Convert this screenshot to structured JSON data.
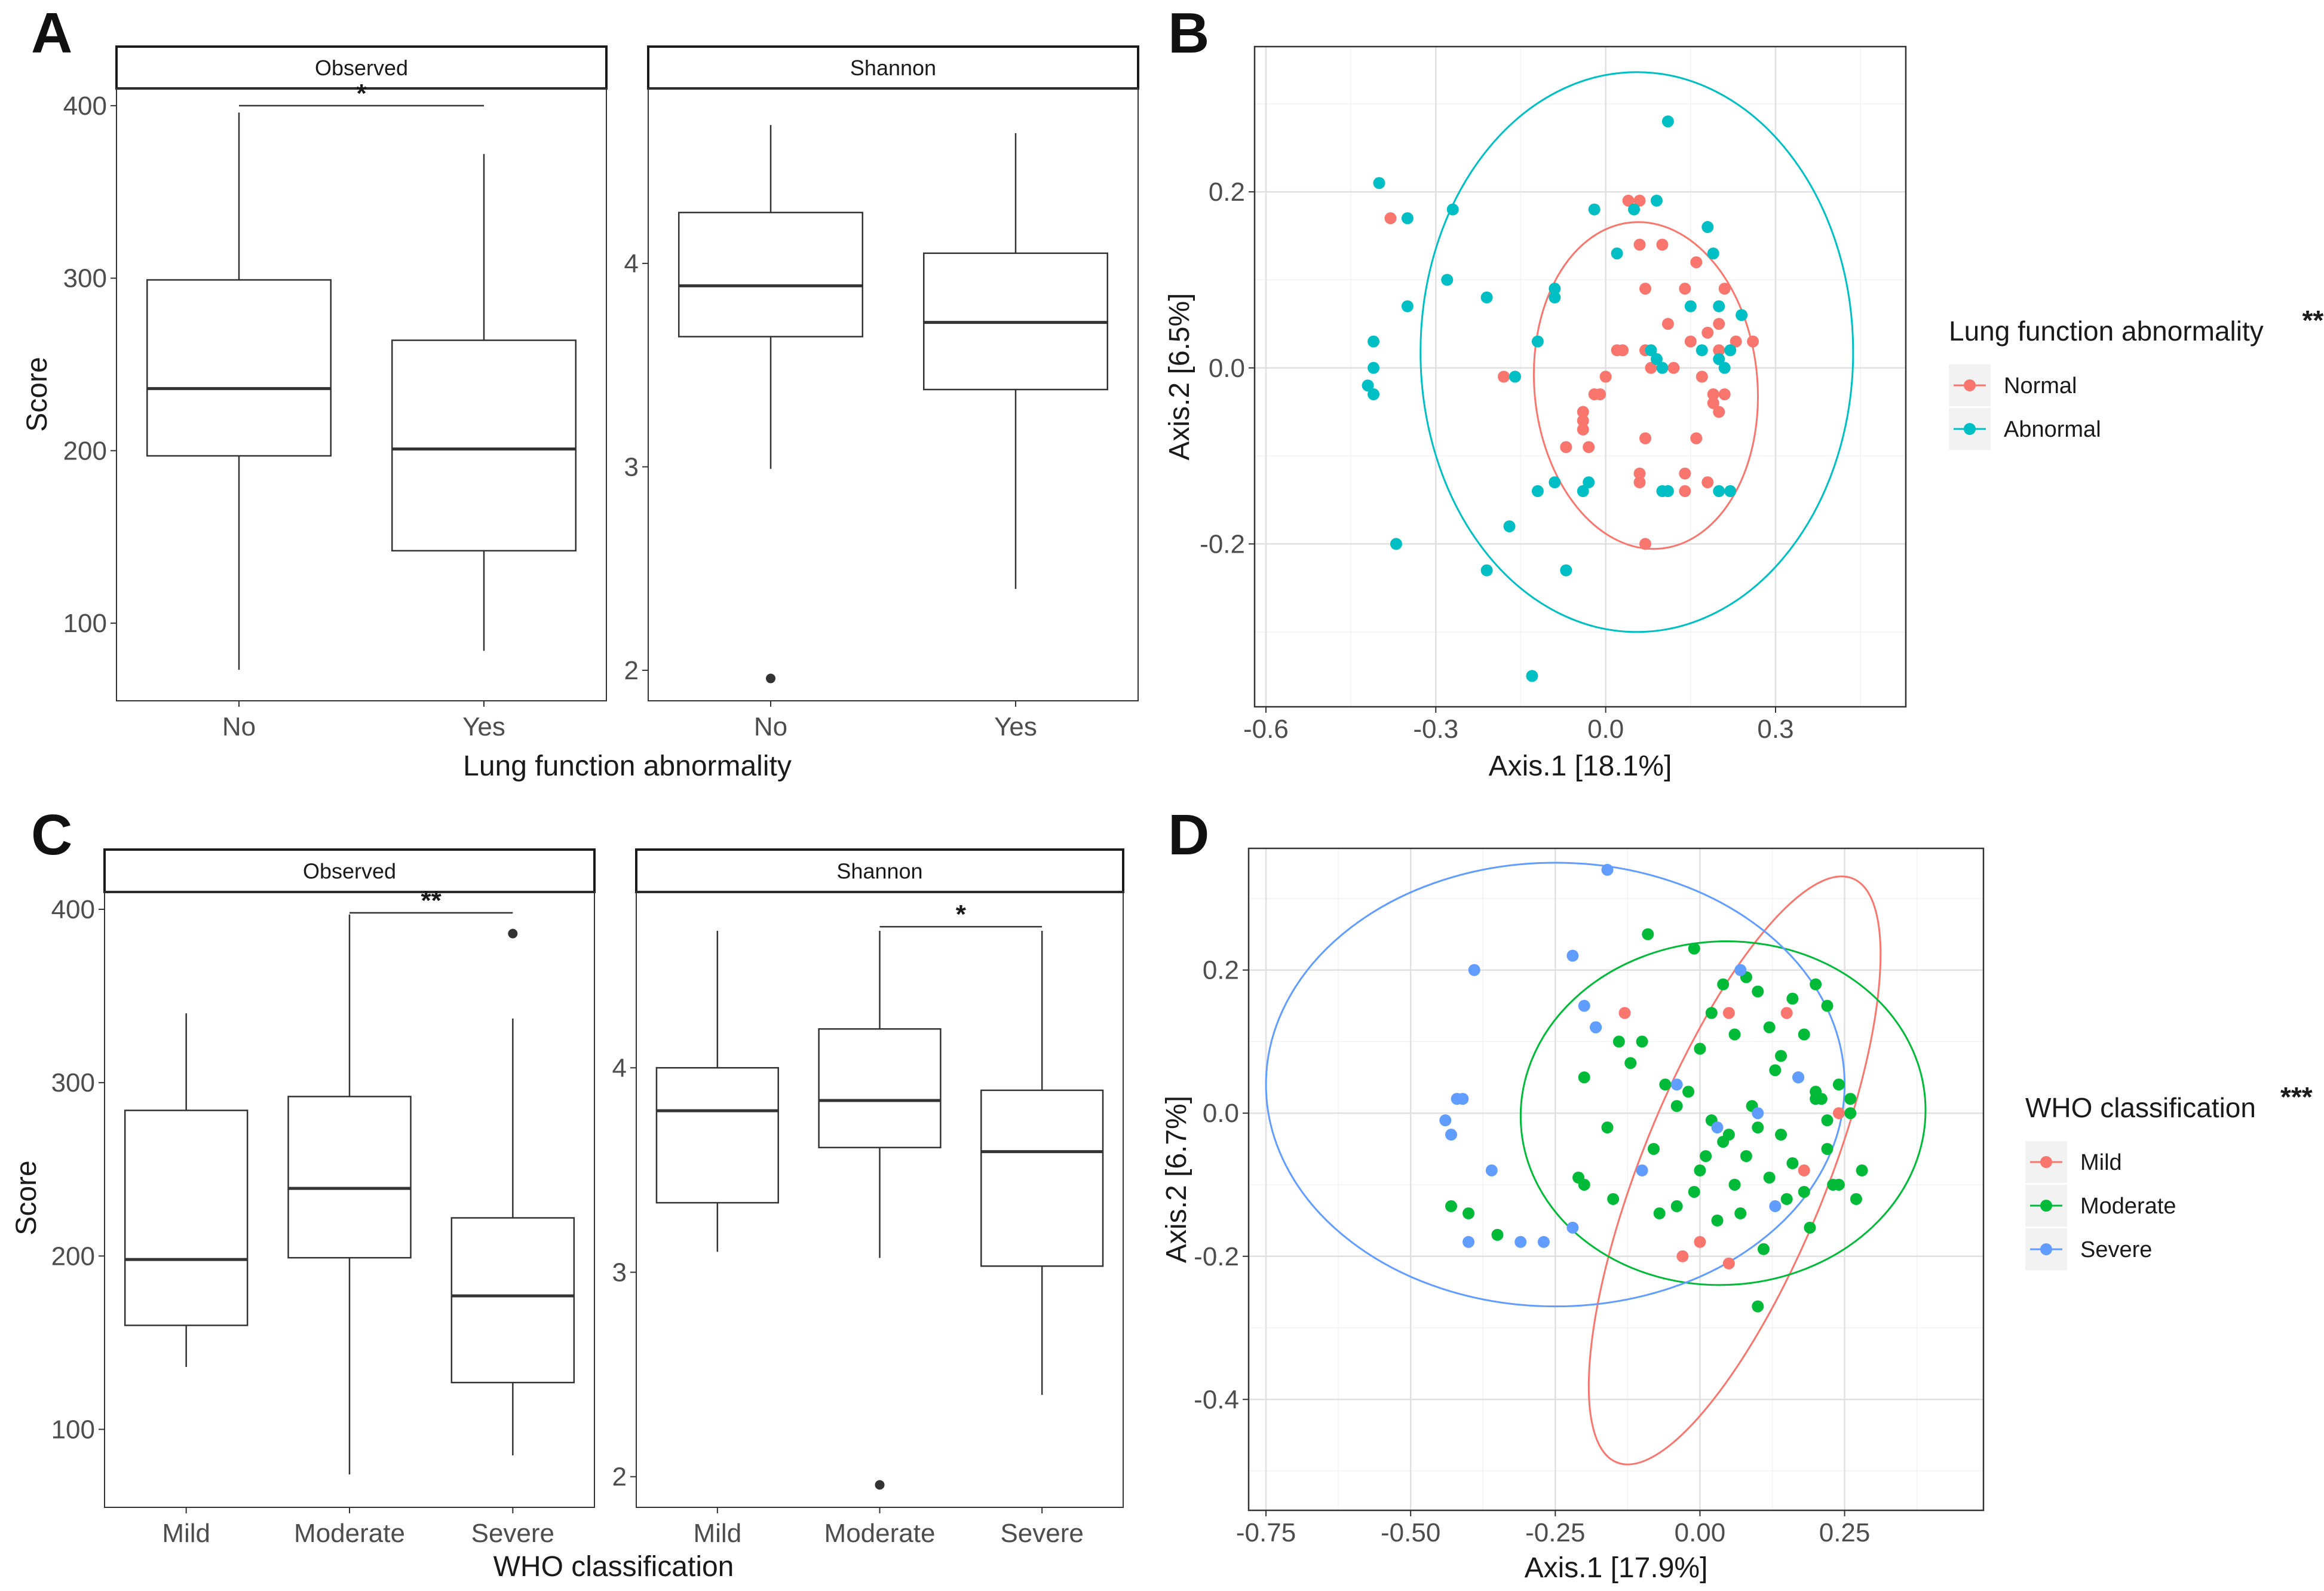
{
  "panel_labels": {
    "a": "A",
    "b": "B",
    "c": "C",
    "d": "D"
  },
  "colors": {
    "normal": "#F8766D",
    "abnormal": "#00BFC4",
    "mild": "#F8766D",
    "moderate": "#00BA38",
    "severe": "#619CFF"
  },
  "chart_data": [
    {
      "id": "A",
      "type": "box",
      "title": "",
      "xlabel": "Lung function abnormality",
      "ylabel": "Score",
      "facets": [
        {
          "strip": "Observed",
          "categories": [
            "No",
            "Yes"
          ],
          "ylim": [
            55,
            410
          ],
          "yticks": [
            100,
            200,
            300,
            400
          ],
          "boxes": [
            {
              "category": "No",
              "min": 73,
              "q1": 197,
              "median": 236,
              "q3": 299,
              "max": 396,
              "outliers": []
            },
            {
              "category": "Yes",
              "min": 84,
              "q1": 142,
              "median": 201,
              "q3": 264,
              "max": 372,
              "outliers": []
            }
          ],
          "significance": [
            {
              "from": "No",
              "to": "Yes",
              "y": 400,
              "label": "*"
            }
          ]
        },
        {
          "strip": "Shannon",
          "categories": [
            "No",
            "Yes"
          ],
          "ylim": [
            1.85,
            4.86
          ],
          "yticks": [
            2,
            3,
            4
          ],
          "boxes": [
            {
              "category": "No",
              "min": 2.99,
              "q1": 3.64,
              "median": 3.89,
              "q3": 4.25,
              "max": 4.68,
              "outliers": [
                1.96
              ]
            },
            {
              "category": "Yes",
              "min": 2.4,
              "q1": 3.38,
              "median": 3.71,
              "q3": 4.05,
              "max": 4.64,
              "outliers": []
            }
          ],
          "significance": []
        }
      ]
    },
    {
      "id": "B",
      "type": "scatter",
      "xlabel": "Axis.1   [18.1%]",
      "ylabel": "Axis.2   [6.5%]",
      "xlim": [
        -0.62,
        0.53
      ],
      "ylim": [
        -0.385,
        0.365
      ],
      "xticks": [
        -0.6,
        -0.3,
        0.0,
        0.3
      ],
      "xtick_labels": [
        "-0.6",
        "-0.3",
        "0.0",
        "0.3"
      ],
      "yticks": [
        -0.2,
        0.0,
        0.2
      ],
      "ytick_labels": [
        "-0.2",
        "0.0",
        "0.2"
      ],
      "legend": {
        "title": "Lung function abnormality",
        "title_stars": "**",
        "entries": [
          "Normal",
          "Abnormal"
        ]
      },
      "ellipses": [
        {
          "group": "Normal",
          "cx": 0.071,
          "cy": -0.02,
          "rx": 0.197,
          "ry": 0.186,
          "angle": -5
        },
        {
          "group": "Abnormal",
          "cx": 0.055,
          "cy": 0.018,
          "rx": 0.382,
          "ry": 0.318,
          "angle": 0
        }
      ],
      "series": [
        {
          "name": "Normal",
          "x": [
            -0.38,
            0.04,
            0.06,
            0.06,
            0.1,
            0.16,
            0.2,
            0.21,
            0.07,
            0.14,
            0.11,
            0.15,
            0.18,
            0.2,
            0.23,
            0.26,
            0.0,
            0.02,
            0.03,
            0.07,
            -0.01,
            -0.02,
            -0.04,
            0.08,
            0.12,
            0.17,
            0.19,
            0.2,
            -0.18,
            -0.04,
            -0.03,
            0.07,
            0.06,
            0.14,
            0.18,
            -0.07,
            0.16,
            0.14,
            0.06,
            0.07,
            -0.04,
            0.19,
            0.21
          ],
          "y": [
            0.17,
            0.19,
            0.19,
            0.14,
            0.14,
            0.12,
            0.05,
            0.09,
            0.09,
            0.09,
            0.05,
            0.03,
            0.04,
            0.02,
            0.03,
            0.03,
            -0.01,
            0.02,
            0.02,
            0.02,
            -0.03,
            -0.03,
            -0.05,
            0.0,
            0.0,
            -0.01,
            -0.03,
            -0.05,
            -0.01,
            -0.07,
            -0.09,
            -0.08,
            -0.13,
            -0.12,
            -0.13,
            -0.09,
            -0.08,
            -0.14,
            -0.12,
            -0.2,
            -0.06,
            -0.04,
            -0.03
          ]
        },
        {
          "name": "Abnormal",
          "x": [
            0.11,
            -0.4,
            -0.35,
            -0.27,
            -0.28,
            -0.35,
            -0.21,
            -0.41,
            -0.41,
            -0.42,
            -0.41,
            -0.37,
            0.02,
            -0.02,
            0.09,
            0.05,
            0.18,
            0.24,
            0.19,
            0.2,
            0.15,
            0.22,
            0.17,
            0.08,
            0.1,
            0.21,
            0.2,
            -0.09,
            -0.09,
            -0.12,
            -0.16,
            -0.12,
            -0.09,
            -0.04,
            -0.03,
            0.1,
            0.11,
            0.22,
            0.2,
            -0.17,
            -0.21,
            -0.07,
            -0.13,
            0.09
          ],
          "y": [
            0.28,
            0.21,
            0.17,
            0.18,
            0.1,
            0.07,
            0.08,
            0.03,
            0.0,
            -0.02,
            -0.03,
            -0.2,
            0.13,
            0.18,
            0.19,
            0.18,
            0.16,
            0.06,
            0.13,
            0.07,
            0.07,
            0.02,
            0.02,
            0.02,
            0.0,
            0.0,
            0.01,
            0.09,
            0.08,
            0.03,
            -0.01,
            -0.14,
            -0.13,
            -0.14,
            -0.13,
            -0.14,
            -0.14,
            -0.14,
            -0.14,
            -0.18,
            -0.23,
            -0.23,
            -0.35,
            0.01
          ]
        }
      ]
    },
    {
      "id": "C",
      "type": "box",
      "title": "",
      "xlabel": "WHO classification",
      "ylabel": "Score",
      "facets": [
        {
          "strip": "Observed",
          "categories": [
            "Mild",
            "Moderate",
            "Severe"
          ],
          "ylim": [
            55,
            410
          ],
          "yticks": [
            100,
            200,
            300,
            400
          ],
          "boxes": [
            {
              "category": "Mild",
              "min": 136,
              "q1": 160,
              "median": 198,
              "q3": 284,
              "max": 340,
              "outliers": []
            },
            {
              "category": "Moderate",
              "min": 74,
              "q1": 199,
              "median": 239,
              "q3": 292,
              "max": 397,
              "outliers": []
            },
            {
              "category": "Severe",
              "min": 85,
              "q1": 127,
              "median": 177,
              "q3": 222,
              "max": 337,
              "outliers": [
                386
              ]
            }
          ],
          "significance": [
            {
              "from": "Moderate",
              "to": "Severe",
              "y": 398,
              "label": "**"
            }
          ]
        },
        {
          "strip": "Shannon",
          "categories": [
            "Mild",
            "Moderate",
            "Severe"
          ],
          "ylim": [
            1.85,
            4.86
          ],
          "yticks": [
            2,
            3,
            4
          ],
          "boxes": [
            {
              "category": "Mild",
              "min": 3.1,
              "q1": 3.34,
              "median": 3.79,
              "q3": 4.0,
              "max": 4.67,
              "outliers": []
            },
            {
              "category": "Moderate",
              "min": 3.07,
              "q1": 3.61,
              "median": 3.84,
              "q3": 4.19,
              "max": 4.67,
              "outliers": [
                1.96
              ]
            },
            {
              "category": "Severe",
              "min": 2.4,
              "q1": 3.03,
              "median": 3.59,
              "q3": 3.89,
              "max": 4.67,
              "outliers": []
            }
          ],
          "significance": [
            {
              "from": "Moderate",
              "to": "Severe",
              "y": 4.69,
              "label": "*"
            }
          ]
        }
      ]
    },
    {
      "id": "D",
      "type": "scatter",
      "xlabel": "Axis.1   [17.9%]",
      "ylabel": "Axis.2   [6.7%]",
      "xlim": [
        -0.78,
        0.49
      ],
      "ylim": [
        -0.555,
        0.37
      ],
      "xticks": [
        -0.75,
        -0.5,
        -0.25,
        0.0,
        0.25
      ],
      "xtick_labels": [
        "-0.75",
        "-0.50",
        "-0.25",
        "0.00",
        "0.25"
      ],
      "yticks": [
        -0.4,
        -0.2,
        0.0,
        0.2
      ],
      "ytick_labels": [
        "-0.4",
        "-0.2",
        "0.0",
        "0.2"
      ],
      "legend": {
        "title": "WHO classification",
        "title_stars": "***",
        "entries": [
          "Mild",
          "Moderate",
          "Severe"
        ]
      },
      "ellipses": [
        {
          "group": "Mild",
          "cx": 0.06,
          "cy": -0.08,
          "rx": 0.16,
          "ry": 0.44,
          "angle": 22
        },
        {
          "group": "Moderate",
          "cx": 0.04,
          "cy": 0.0,
          "rx": 0.35,
          "ry": 0.24,
          "angle": -3
        },
        {
          "group": "Severe",
          "cx": -0.25,
          "cy": 0.04,
          "rx": 0.5,
          "ry": 0.31,
          "angle": 0
        }
      ],
      "series": [
        {
          "name": "Mild",
          "x": [
            -0.13,
            0.05,
            0.15,
            0.24,
            0.18,
            -0.03,
            0.05,
            0.0
          ],
          "y": [
            0.14,
            0.14,
            0.14,
            0.0,
            -0.08,
            -0.2,
            -0.21,
            -0.18
          ]
        },
        {
          "name": "Moderate",
          "x": [
            -0.09,
            -0.01,
            0.0,
            0.02,
            0.04,
            0.06,
            0.08,
            0.1,
            0.12,
            0.14,
            0.16,
            0.18,
            0.2,
            0.22,
            0.24,
            0.26,
            -0.2,
            -0.18,
            -0.16,
            -0.14,
            -0.12,
            -0.1,
            -0.08,
            -0.06,
            -0.04,
            -0.02,
            0.0,
            0.02,
            0.04,
            0.06,
            0.08,
            0.1,
            0.12,
            0.14,
            0.16,
            0.18,
            0.2,
            0.22,
            0.24,
            0.26,
            0.28,
            -0.21,
            -0.2,
            -0.15,
            -0.07,
            -0.04,
            -0.01,
            0.03,
            0.07,
            0.11,
            0.15,
            0.19,
            0.23,
            0.27,
            -0.43,
            -0.35,
            -0.4,
            0.1,
            0.2,
            0.22,
            0.21,
            0.17,
            0.13,
            0.09,
            0.05,
            0.01
          ],
          "y": [
            0.25,
            0.23,
            0.09,
            0.14,
            0.18,
            0.11,
            0.19,
            0.17,
            0.12,
            0.08,
            0.16,
            0.11,
            0.18,
            0.15,
            0.04,
            0.02,
            0.05,
            0.12,
            -0.02,
            0.1,
            0.07,
            0.1,
            -0.05,
            0.04,
            0.01,
            0.03,
            -0.08,
            -0.01,
            -0.04,
            -0.1,
            -0.06,
            -0.02,
            -0.09,
            -0.03,
            -0.07,
            -0.11,
            0.02,
            -0.05,
            -0.1,
            0.0,
            -0.08,
            -0.09,
            -0.1,
            -0.12,
            -0.14,
            -0.13,
            -0.11,
            -0.15,
            -0.14,
            -0.19,
            -0.12,
            -0.16,
            -0.1,
            -0.12,
            -0.13,
            -0.17,
            -0.14,
            -0.27,
            0.03,
            -0.01,
            0.02,
            0.05,
            0.06,
            0.01,
            -0.03,
            -0.06
          ]
        },
        {
          "name": "Severe",
          "x": [
            -0.16,
            -0.39,
            -0.22,
            -0.2,
            -0.18,
            0.07,
            -0.42,
            -0.41,
            -0.44,
            -0.43,
            -0.36,
            -0.1,
            -0.31,
            -0.22,
            -0.27,
            -0.4,
            0.17,
            0.03,
            -0.04,
            0.1,
            0.13
          ],
          "y": [
            0.34,
            0.2,
            0.22,
            0.15,
            0.12,
            0.2,
            0.02,
            0.02,
            -0.01,
            -0.03,
            -0.08,
            -0.08,
            -0.18,
            -0.16,
            -0.18,
            -0.18,
            0.05,
            -0.02,
            0.04,
            0.0,
            -0.13
          ]
        }
      ]
    }
  ]
}
